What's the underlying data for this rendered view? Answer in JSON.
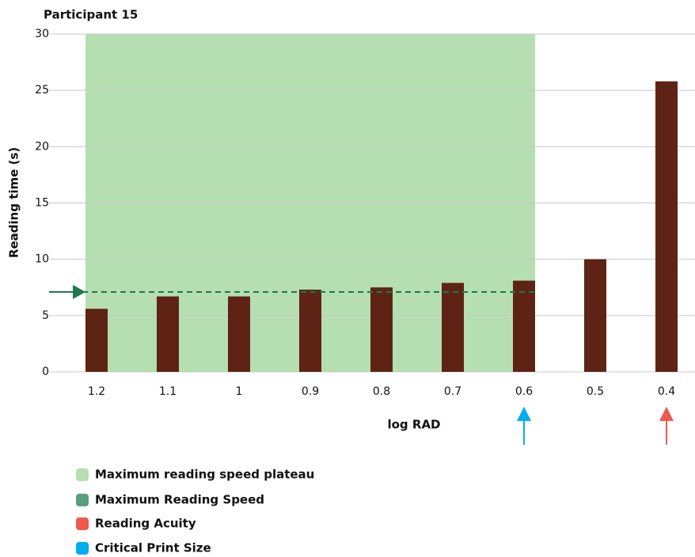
{
  "chart_data": {
    "type": "bar",
    "title": "Participant 15",
    "y_label": "Reading time (s)",
    "x_label": "log RAD",
    "categories": [
      "1.2",
      "1.1",
      "1",
      "0.9",
      "0.8",
      "0.7",
      "0.6",
      "0.5",
      "0.4"
    ],
    "values": [
      5.6,
      6.7,
      6.7,
      7.3,
      7.5,
      7.9,
      8.1,
      10,
      25.8
    ],
    "color": "#5e2314",
    "ylim": [
      0,
      30
    ],
    "yticks": [
      0,
      5,
      10,
      15,
      20,
      25,
      30
    ],
    "grid": true,
    "max_reading_speed": 7.1,
    "critical_print_size": "0.6",
    "reading_acuity": "0.4",
    "legend": [
      {
        "name": "Maximum reading speed plateau",
        "color": "#b5dfb0"
      },
      {
        "name": "Maximum Reading Speed",
        "color": "#5a9e80"
      },
      {
        "name": "Reading Acuity",
        "color": "#ee5a4e"
      },
      {
        "name": "Critical Print Size",
        "color": "#00aeef"
      }
    ]
  }
}
